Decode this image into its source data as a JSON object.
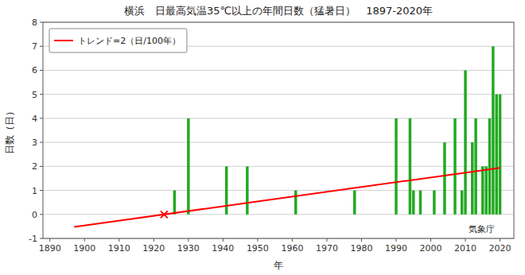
{
  "chart_data": {
    "type": "bar",
    "title": "横浜　日最高気温35℃以上の年間日数（猛暑日）　1897-2020年",
    "xlabel": "年",
    "ylabel": "日数（日）",
    "xlim": [
      1888,
      2024
    ],
    "ylim": [
      -1,
      8
    ],
    "xticks": [
      1890,
      1900,
      1910,
      1920,
      1930,
      1940,
      1950,
      1960,
      1970,
      1980,
      1990,
      2000,
      2010,
      2020
    ],
    "yticks": [
      -1,
      0,
      1,
      2,
      3,
      4,
      5,
      6,
      7,
      8
    ],
    "grid": true,
    "legend": "upper left",
    "annotation": "気象庁",
    "series": [
      {
        "type": "bar",
        "color": "#22aa22",
        "x": [
          1897,
          1898,
          1899,
          1900,
          1901,
          1902,
          1903,
          1904,
          1905,
          1906,
          1907,
          1908,
          1909,
          1910,
          1911,
          1912,
          1913,
          1914,
          1915,
          1916,
          1917,
          1918,
          1919,
          1920,
          1921,
          1922,
          1923,
          1924,
          1925,
          1926,
          1927,
          1928,
          1929,
          1930,
          1931,
          1932,
          1933,
          1934,
          1935,
          1936,
          1937,
          1938,
          1939,
          1940,
          1941,
          1942,
          1943,
          1944,
          1945,
          1946,
          1947,
          1948,
          1949,
          1950,
          1951,
          1952,
          1953,
          1954,
          1955,
          1956,
          1957,
          1958,
          1959,
          1960,
          1961,
          1962,
          1963,
          1964,
          1965,
          1966,
          1967,
          1968,
          1969,
          1970,
          1971,
          1972,
          1973,
          1974,
          1975,
          1976,
          1977,
          1978,
          1979,
          1980,
          1981,
          1982,
          1983,
          1984,
          1985,
          1986,
          1987,
          1988,
          1989,
          1990,
          1991,
          1992,
          1993,
          1994,
          1995,
          1996,
          1997,
          1998,
          1999,
          2000,
          2001,
          2002,
          2003,
          2004,
          2005,
          2006,
          2007,
          2008,
          2009,
          2010,
          2011,
          2012,
          2013,
          2014,
          2015,
          2016,
          2017,
          2018,
          2019,
          2020
        ],
        "values": [
          0,
          0,
          0,
          0,
          0,
          0,
          0,
          0,
          0,
          0,
          0,
          0,
          0,
          0,
          0,
          0,
          0,
          0,
          0,
          0,
          0,
          0,
          0,
          0,
          0,
          0,
          0,
          0,
          0,
          1,
          0,
          0,
          0,
          4,
          0,
          0,
          0,
          0,
          0,
          0,
          0,
          0,
          0,
          0,
          2,
          0,
          0,
          0,
          0,
          0,
          2,
          0,
          0,
          0,
          0,
          0,
          0,
          0,
          0,
          0,
          0,
          0,
          0,
          0,
          1,
          0,
          0,
          0,
          0,
          0,
          0,
          0,
          0,
          0,
          0,
          0,
          0,
          0,
          0,
          0,
          0,
          1,
          0,
          0,
          0,
          0,
          0,
          0,
          0,
          0,
          0,
          0,
          0,
          4,
          0,
          0,
          0,
          4,
          1,
          0,
          1,
          0,
          0,
          0,
          1,
          0,
          0,
          3,
          0,
          0,
          4,
          0,
          1,
          6,
          0,
          3,
          4,
          0,
          2,
          2,
          4,
          7,
          5,
          5
        ]
      },
      {
        "type": "line",
        "name": "トレンド=2（日/100年）",
        "color": "#ff0000",
        "x": [
          1897,
          2020
        ],
        "values": [
          -0.52,
          1.94
        ]
      },
      {
        "type": "scatter",
        "marker": "x",
        "color": "#ff0000",
        "x": [
          1923
        ],
        "values": [
          0
        ]
      }
    ]
  }
}
